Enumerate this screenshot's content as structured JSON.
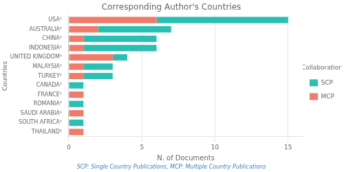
{
  "chart_data": {
    "type": "bar",
    "orientation": "horizontal",
    "stacked": true,
    "title": "Corresponding Author's Countries",
    "xlabel": "N. of Documents",
    "ylabel": "Countries",
    "categories": [
      "USA¹",
      "AUSTRALIA¹",
      "CHINA¹",
      "INDONESIA¹",
      "UNITED KINGDOM¹",
      "MALAYSIA¹",
      "TURKEY¹",
      "CANADA¹",
      "FRANCE¹",
      "ROMANIA¹",
      "SAUDI ARABIA¹",
      "SOUTH AFRICA¹",
      "THAILAND¹"
    ],
    "series": [
      {
        "name": "MCP",
        "color": "#f07b6b",
        "values": [
          6,
          2,
          1,
          1,
          3,
          1,
          1,
          0,
          1,
          0,
          1,
          0,
          1
        ]
      },
      {
        "name": "SCP",
        "color": "#2bbfb3",
        "values": [
          9,
          5,
          5,
          5,
          1,
          2,
          2,
          1,
          0,
          1,
          0,
          1,
          0
        ]
      }
    ],
    "xlim": [
      0,
      16
    ],
    "xticks": [
      0,
      5,
      10,
      15
    ],
    "grid": true,
    "legend": "right",
    "legend_title": "Collaboration",
    "footnote": "SCP: Single Country Publications, MCP: Multiple Country Publications"
  }
}
